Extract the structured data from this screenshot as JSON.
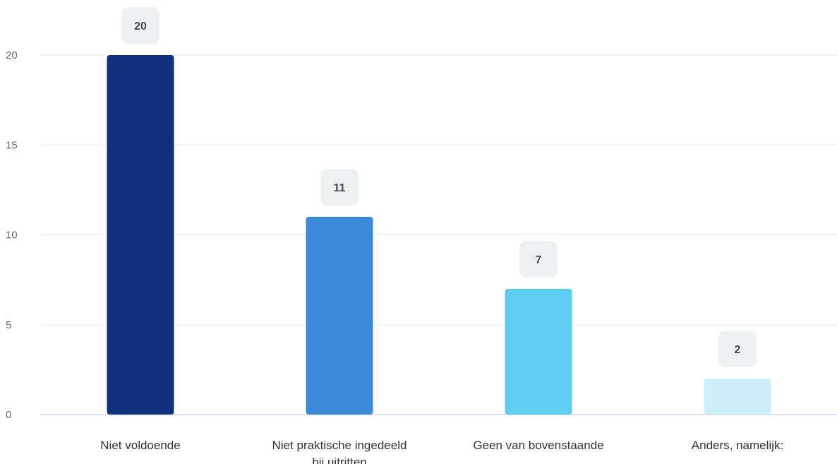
{
  "chart_data": {
    "type": "bar",
    "title": "",
    "xlabel": "",
    "ylabel": "",
    "categories": [
      "Niet voldoende",
      "Niet praktische ingedeeld bij uitritten",
      "Geen van bovenstaande",
      "Anders, namelijk:"
    ],
    "category_lines": [
      [
        "Niet voldoende"
      ],
      [
        "Niet praktische ingedeeld",
        "bij uitritten"
      ],
      [
        "Geen van bovenstaande"
      ],
      [
        "Anders, namelijk:"
      ]
    ],
    "values": [
      20,
      11,
      7,
      2
    ],
    "value_labels": [
      "20",
      "11",
      "7",
      "2"
    ],
    "colors": [
      "#12307c",
      "#3a8ad8",
      "#5fcdef",
      "#cdeff8"
    ],
    "ylim": [
      0,
      20
    ],
    "yticks": [
      0,
      5,
      10,
      15,
      20
    ],
    "ytick_labels": [
      "0",
      "5",
      "10",
      "15",
      "20"
    ],
    "grid": true,
    "legend": "none"
  }
}
